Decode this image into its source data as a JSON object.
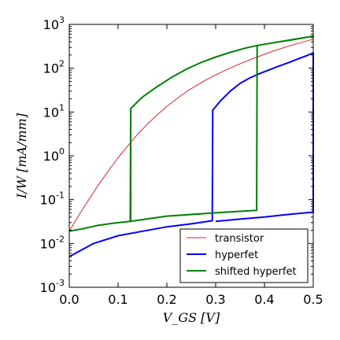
{
  "chart_data": {
    "type": "line",
    "xlabel": "V_GS [V]",
    "ylabel": "I/W [mA/mm]",
    "xlim": [
      0,
      0.5
    ],
    "ylim": [
      0.001,
      1000
    ],
    "yscale": "log",
    "grid": false,
    "legend_position": "lower-right",
    "x_ticks": [
      "0.0",
      "0.1",
      "0.2",
      "0.3",
      "0.4",
      "0.5"
    ],
    "y_tick_bases": [
      "10",
      "10",
      "10",
      "10",
      "10",
      "10",
      "10"
    ],
    "y_tick_exponents": [
      "-3",
      "-2",
      "-1",
      "0",
      "1",
      "2",
      "3"
    ],
    "series": [
      {
        "name": "transistor",
        "color": "#d62728",
        "width": 1,
        "points": [
          [
            0.0,
            0.019
          ],
          [
            0.02,
            0.045
          ],
          [
            0.04,
            0.1
          ],
          [
            0.06,
            0.22
          ],
          [
            0.08,
            0.45
          ],
          [
            0.1,
            0.9
          ],
          [
            0.12,
            1.7
          ],
          [
            0.14,
            3.1
          ],
          [
            0.16,
            5.3
          ],
          [
            0.18,
            8.6
          ],
          [
            0.2,
            13.5
          ],
          [
            0.22,
            20
          ],
          [
            0.24,
            29
          ],
          [
            0.26,
            40
          ],
          [
            0.28,
            54
          ],
          [
            0.3,
            70
          ],
          [
            0.32,
            90
          ],
          [
            0.34,
            113
          ],
          [
            0.36,
            140
          ],
          [
            0.38,
            172
          ],
          [
            0.4,
            208
          ],
          [
            0.42,
            250
          ],
          [
            0.44,
            295
          ],
          [
            0.46,
            345
          ],
          [
            0.48,
            400
          ],
          [
            0.5,
            460
          ]
        ]
      },
      {
        "name": "hyperfet",
        "color": "#0000ff",
        "width": 2,
        "points": [
          [
            0.0,
            0.005
          ],
          [
            0.05,
            0.01
          ],
          [
            0.1,
            0.015
          ],
          [
            0.15,
            0.019
          ],
          [
            0.2,
            0.024
          ],
          [
            0.25,
            0.028
          ],
          [
            0.293,
            0.033
          ],
          [
            0.294,
            11
          ],
          [
            0.31,
            18
          ],
          [
            0.33,
            30
          ],
          [
            0.35,
            45
          ],
          [
            0.37,
            60
          ],
          [
            0.39,
            75
          ],
          [
            0.41,
            92
          ],
          [
            0.43,
            112
          ],
          [
            0.45,
            135
          ],
          [
            0.47,
            165
          ],
          [
            0.49,
            200
          ],
          [
            0.5,
            225
          ],
          [
            0.5,
            0.052
          ],
          [
            0.45,
            0.046
          ],
          [
            0.4,
            0.04
          ],
          [
            0.35,
            0.036
          ],
          [
            0.3,
            0.032
          ]
        ]
      },
      {
        "name": "shifted hyperfet",
        "color": "#008000",
        "width": 2,
        "points": [
          [
            0.0,
            0.019
          ],
          [
            0.03,
            0.022
          ],
          [
            0.06,
            0.026
          ],
          [
            0.09,
            0.029
          ],
          [
            0.125,
            0.032
          ],
          [
            0.126,
            12
          ],
          [
            0.15,
            22
          ],
          [
            0.18,
            38
          ],
          [
            0.21,
            62
          ],
          [
            0.24,
            95
          ],
          [
            0.27,
            135
          ],
          [
            0.3,
            180
          ],
          [
            0.33,
            230
          ],
          [
            0.36,
            285
          ],
          [
            0.385,
            330
          ],
          [
            0.42,
            385
          ],
          [
            0.46,
            450
          ],
          [
            0.5,
            540
          ],
          [
            0.385,
            330
          ],
          [
            0.384,
            0.057
          ],
          [
            0.3,
            0.05
          ],
          [
            0.2,
            0.042
          ],
          [
            0.125,
            0.032
          ],
          [
            0.126,
            12
          ],
          [
            0.126,
            0.032
          ]
        ]
      }
    ]
  }
}
